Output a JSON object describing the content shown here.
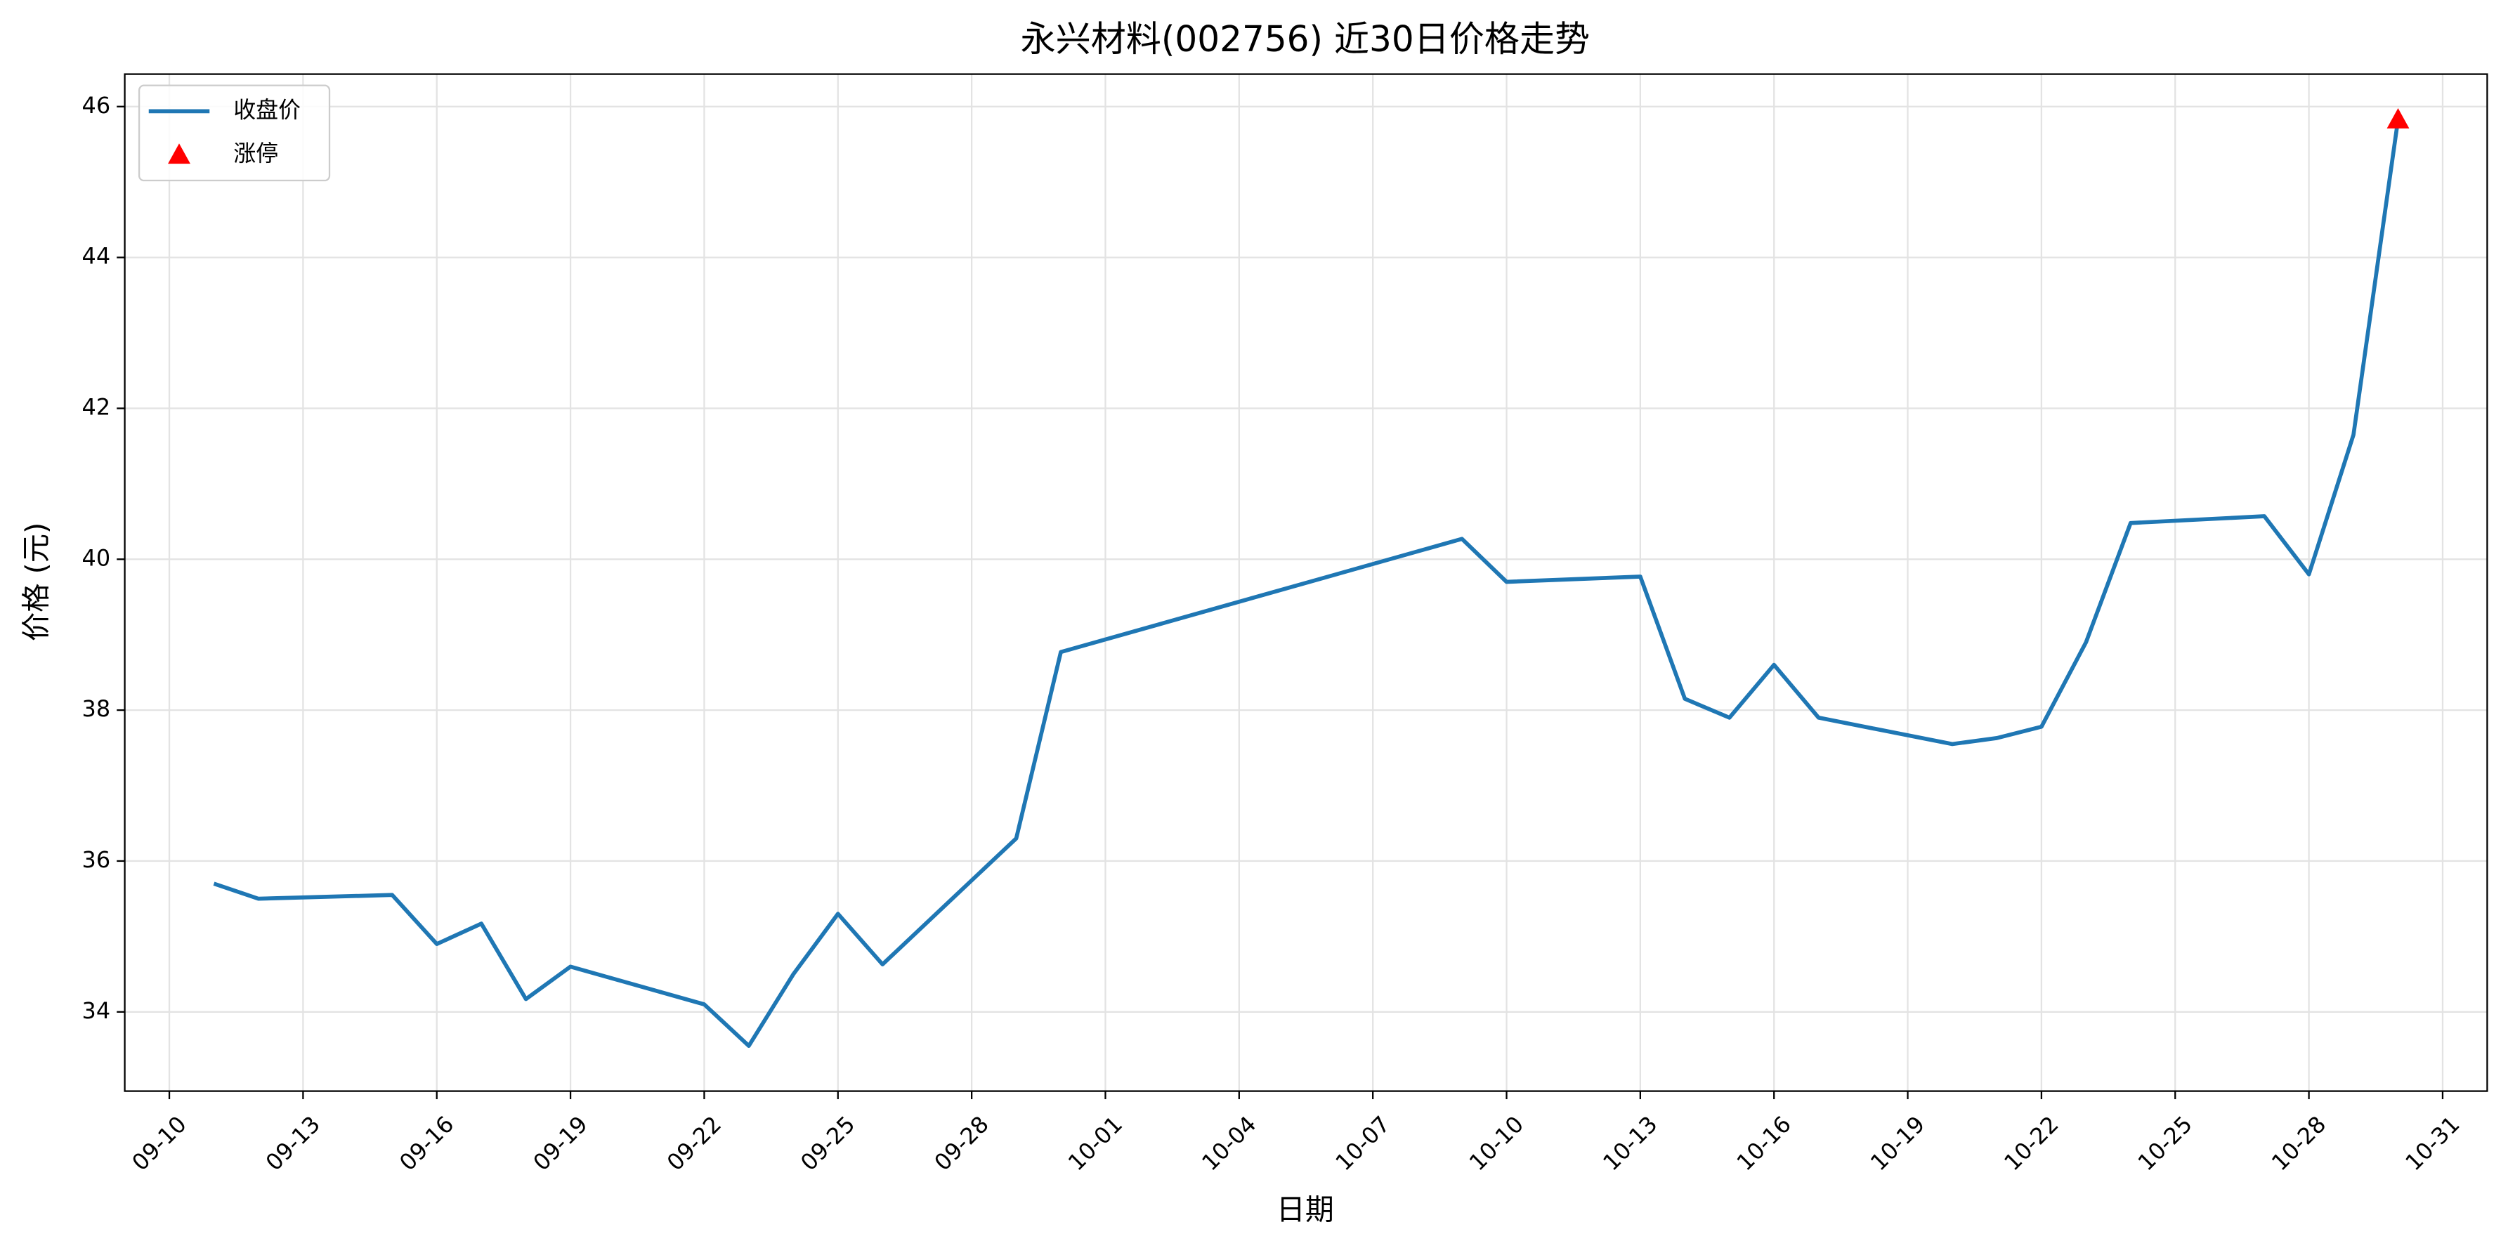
{
  "chart_data": {
    "type": "line",
    "title": "永兴材料(002756) 近30日价格走势",
    "x_label": "日期",
    "y_label": "价格 (元)",
    "series": [
      {
        "name": "收盘价",
        "color": "#1f77b4",
        "kind": "line",
        "x": [
          "09-11",
          "09-12",
          "09-15",
          "09-16",
          "09-17",
          "09-18",
          "09-19",
          "09-22",
          "09-23",
          "09-24",
          "09-25",
          "09-26",
          "09-29",
          "09-30",
          "10-09",
          "10-10",
          "10-13",
          "10-14",
          "10-15",
          "10-16",
          "10-17",
          "10-20",
          "10-21",
          "10-22",
          "10-23",
          "10-24",
          "10-27",
          "10-28",
          "10-29",
          "10-30"
        ],
        "values": [
          35.7,
          35.5,
          35.55,
          34.9,
          35.17,
          34.17,
          34.6,
          34.1,
          33.55,
          34.5,
          35.3,
          34.63,
          36.3,
          38.77,
          40.27,
          39.7,
          39.77,
          38.15,
          37.9,
          38.6,
          37.9,
          37.55,
          37.63,
          37.78,
          38.9,
          40.48,
          40.57,
          39.8,
          41.65,
          45.83
        ]
      },
      {
        "name": "涨停",
        "color": "#ff0000",
        "kind": "scatter",
        "marker": "triangle",
        "x": [
          "10-30"
        ],
        "values": [
          45.83
        ]
      }
    ],
    "xlim": [
      "09-09",
      "11-01"
    ],
    "xticks": [
      "09-10",
      "09-13",
      "09-16",
      "09-19",
      "09-22",
      "09-25",
      "09-28",
      "10-01",
      "10-04",
      "10-07",
      "10-10",
      "10-13",
      "10-16",
      "10-19",
      "10-22",
      "10-25",
      "10-28",
      "10-31"
    ],
    "ylim": [
      32.95,
      46.43
    ],
    "yticks": [
      34,
      36,
      38,
      40,
      42,
      44,
      46
    ],
    "grid": true,
    "legend": "upper left"
  }
}
